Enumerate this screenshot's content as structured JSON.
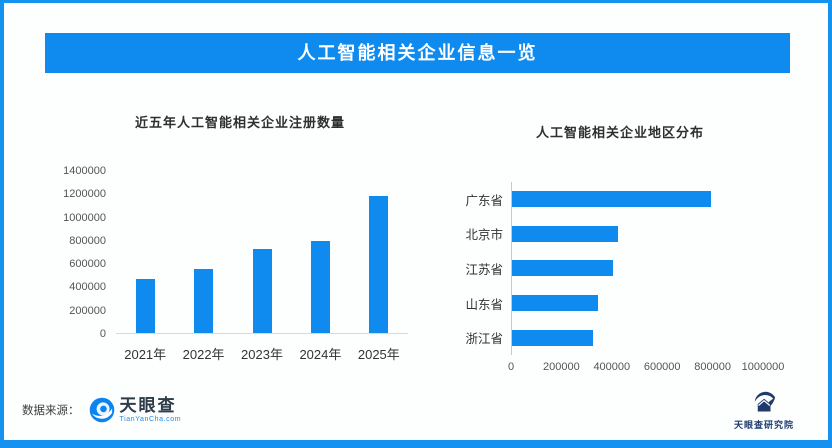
{
  "page": {
    "banner_title": "人工智能相关企业信息一览",
    "accent_color": "#0f8bf0"
  },
  "footer": {
    "source_label": "数据来源：",
    "tianyancha_text": "天眼查",
    "tianyancha_url": "TianYanCha.com",
    "institute_text": "天眼查研究院"
  },
  "chart_data": [
    {
      "type": "bar",
      "title": "近五年人工智能相关企业注册数量",
      "categories": [
        "2021年",
        "2022年",
        "2023年",
        "2024年",
        "2025年"
      ],
      "values": [
        460000,
        550000,
        720000,
        790000,
        1180000
      ],
      "ylim": [
        0,
        1400000
      ],
      "yticks": [
        "1400000",
        "1200000",
        "1000000",
        "800000",
        "600000",
        "400000",
        "200000",
        "0"
      ],
      "xlabel": "",
      "ylabel": "",
      "bar_color": "#0f8bf0",
      "grid": false,
      "legend": "none"
    },
    {
      "type": "bar-horizontal",
      "title": "人工智能相关企业地区分布",
      "categories": [
        "广东省",
        "北京市",
        "江苏省",
        "山东省",
        "浙江省"
      ],
      "values": [
        790000,
        420000,
        400000,
        340000,
        320000
      ],
      "xlim": [
        0,
        1000000
      ],
      "xticks": [
        "0",
        "200000",
        "400000",
        "600000",
        "800000",
        "1000000"
      ],
      "xlabel": "",
      "ylabel": "",
      "bar_color": "#0f8bf0",
      "grid": false,
      "legend": "none"
    }
  ]
}
